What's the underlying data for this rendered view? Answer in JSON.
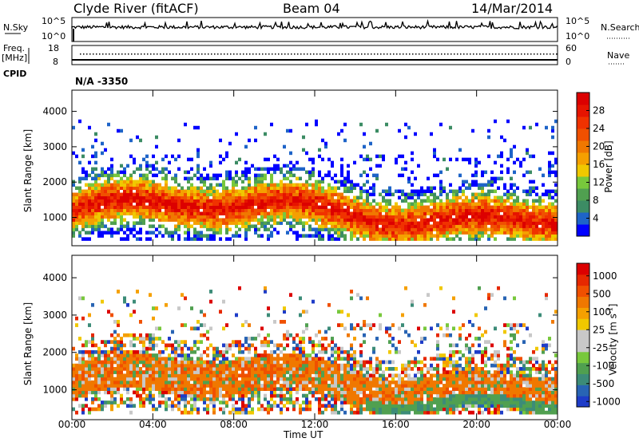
{
  "header": {
    "station": "Clyde River (fitACF)",
    "beam": "Beam 04",
    "date": "14/Mar/2014"
  },
  "noise_panel": {
    "left_label": "N.Sky",
    "right_label": "N.Search",
    "y_ticks_left": [
      "10^5",
      "10^0"
    ],
    "y_ticks_right": [
      "10^5",
      "10^0"
    ]
  },
  "freq_panel": {
    "left_label_1": "Freq.",
    "left_label_2": "[MHz]",
    "right_label": "Nave",
    "y_ticks_left": [
      "18",
      "8"
    ],
    "y_ticks_right": [
      "60",
      "0"
    ],
    "cpid_label": "CPID",
    "cpid_value": "N/A -3350"
  },
  "chart_data": [
    {
      "type": "heatmap",
      "name": "power",
      "ylabel": "Slant Range [km]",
      "xlabel": "Time UT",
      "x_ticks": [
        "00:00",
        "04:00",
        "08:00",
        "12:00",
        "16:00",
        "20:00",
        "00:00"
      ],
      "y_ticks": [
        1000,
        2000,
        3000,
        4000
      ],
      "ylim": [
        200,
        4600
      ],
      "colorbar": {
        "label": "Power [dB]",
        "ticks": [
          4,
          8,
          12,
          16,
          20,
          24,
          28
        ],
        "range": [
          0,
          32
        ],
        "colors": [
          "#0000ff",
          "#1e64c8",
          "#3c8c64",
          "#50a050",
          "#78c83c",
          "#f0c800",
          "#f5a000",
          "#f07800",
          "#f05000",
          "#f03200",
          "#e61400",
          "#dc0000"
        ]
      }
    },
    {
      "type": "heatmap",
      "name": "velocity",
      "ylabel": "Slant Range [km]",
      "xlabel": "Time UT",
      "x_ticks": [
        "00:00",
        "04:00",
        "08:00",
        "12:00",
        "16:00",
        "20:00",
        "00:00"
      ],
      "y_ticks": [
        1000,
        2000,
        3000,
        4000
      ],
      "ylim": [
        200,
        4600
      ],
      "colorbar": {
        "label": "Velocity [m s",
        "label_sup": "-1",
        "label_end": "]",
        "ticks": [
          "1000",
          "500",
          "100",
          "25",
          "-25",
          "-100",
          "-500",
          "-1000"
        ],
        "colors": [
          "#1e3cc8",
          "#2864b4",
          "#3c8c78",
          "#50a050",
          "#78c83c",
          "#c8c8c8",
          "#c8c8c8",
          "#f0c800",
          "#f5a000",
          "#f07800",
          "#f05000",
          "#e62800",
          "#dc0000"
        ]
      }
    }
  ]
}
